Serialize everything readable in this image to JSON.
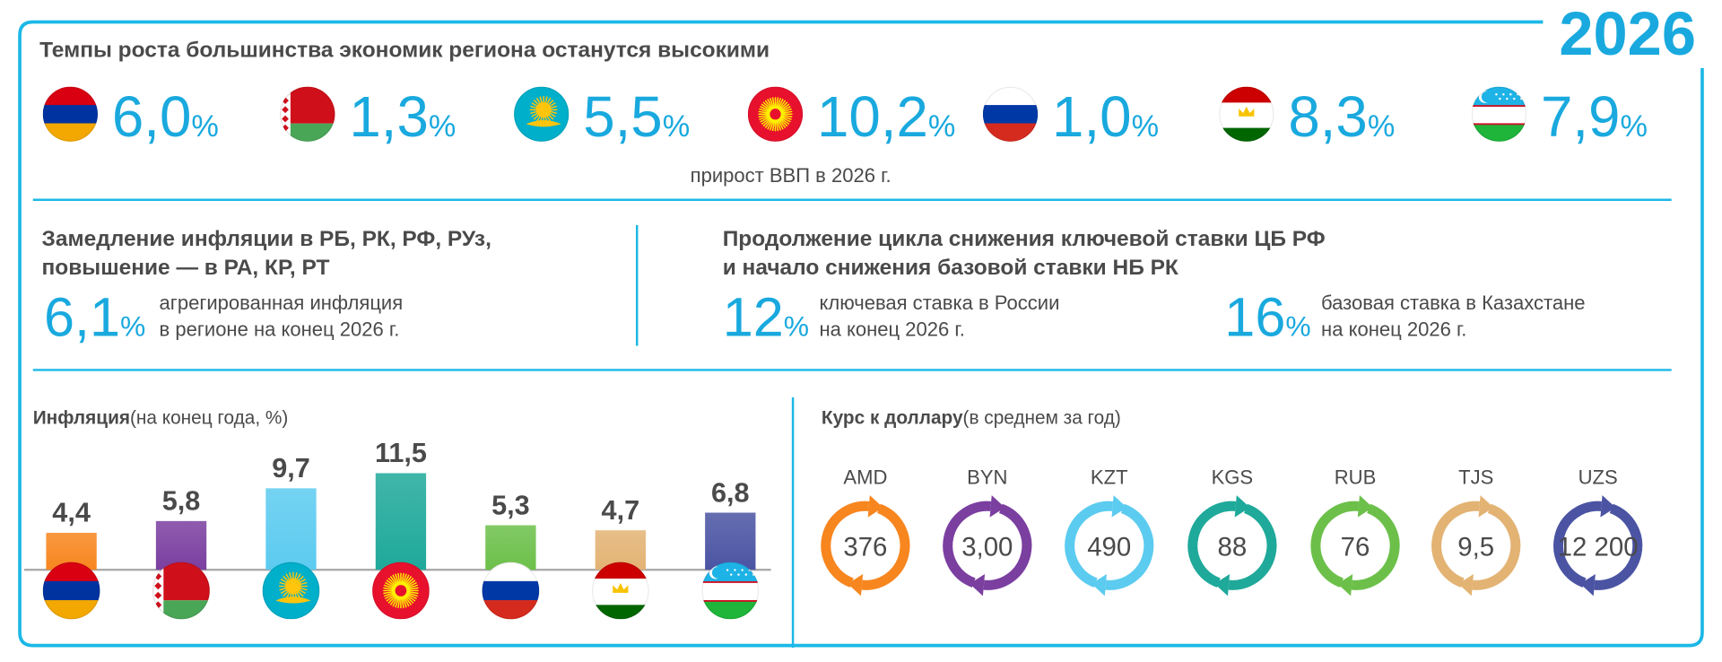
{
  "badge": "2026",
  "header": {
    "title": "Темпы роста большинства экономик региона останутся высокими"
  },
  "percent": "%",
  "gdp": {
    "values": [
      "6,0",
      "1,3",
      "5,5",
      "10,2",
      "1,0",
      "8,3",
      "7,9"
    ],
    "caption": "прирост ВВП в 2026 г."
  },
  "inflation": {
    "title_lines": [
      "Замедление инфляции в РБ, РК, РФ, РУз,",
      "повышение — в РА, КР, РТ"
    ],
    "value": "6,1",
    "description_lines": [
      "агрегированная инфляция",
      "в регионе на конец 2026 г."
    ]
  },
  "rates": {
    "title_lines": [
      "Продолжение цикла снижения ключевой ставки ЦБ РФ",
      "и начало снижения базовой ставки НБ РК"
    ],
    "items": [
      {
        "value": "12",
        "description_lines": [
          "ключевая ставка в России",
          "на конец 2026 г."
        ]
      },
      {
        "value": "16",
        "description_lines": [
          "базовая ставка в Казахстане",
          "на конец 2026 г."
        ]
      }
    ]
  },
  "chart_data": {
    "type": "bar",
    "title": "Инфляция",
    "subtitle": "(на конец года, %)",
    "categories": [
      null,
      null,
      null,
      null,
      null,
      null,
      null
    ],
    "values": [
      4.4,
      5.8,
      9.7,
      11.5,
      5.3,
      4.7,
      6.8
    ],
    "value_labels": [
      "4,4",
      "5,8",
      "9,7",
      "11,5",
      "5,3",
      "4,7",
      "6,8"
    ],
    "colors": [
      "#f7861f",
      "#7b3fa0",
      "#5ccbf0",
      "#1fa99a",
      "#6cc04a",
      "#e3b374",
      "#4b54a3"
    ]
  },
  "exchange": {
    "title": "Курс к доллару",
    "subtitle": "(в среднем за год)",
    "codes": [
      "AMD",
      "BYN",
      "KZT",
      "KGS",
      "RUB",
      "TJS",
      "UZS"
    ],
    "values": [
      "376",
      "3,00",
      "490",
      "88",
      "76",
      "9,5",
      "12 200"
    ]
  }
}
